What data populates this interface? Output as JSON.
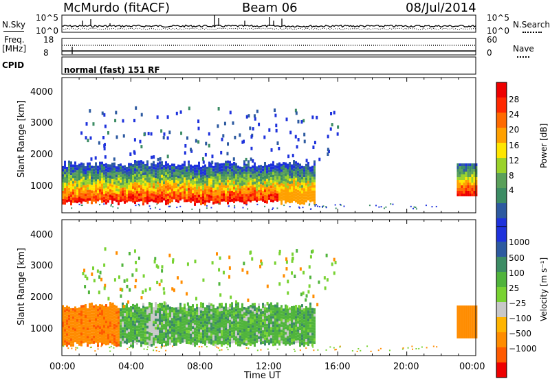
{
  "header": {
    "station": "McMurdo (fitACF)",
    "beam": "Beam 06",
    "date": "08/Jul/2014"
  },
  "top_panels": {
    "nsky_label": "N.Sky",
    "nsearch_label": "N.Search",
    "left_ticks": [
      "10^5",
      "10^0"
    ],
    "right_ticks": [
      "10^5",
      "10^0"
    ],
    "freq_label": "Freq.",
    "freq_unit": "[MHz]",
    "freq_ticks": [
      "18",
      "8"
    ],
    "nave_label": "Nave",
    "nave_ticks": [
      "60",
      "0"
    ],
    "cpid_label": "CPID",
    "cpid_text": "normal (fast) 151 RF"
  },
  "colors": {
    "power_scale": [
      "#1e32dc",
      "#2d5aa0",
      "#3c8c64",
      "#5aa05a",
      "#9ad22a",
      "#ffe600",
      "#ffa000",
      "#ff6a00",
      "#ff2800",
      "#ee0000"
    ],
    "velocity_scale": [
      "#ee0000",
      "#ff5a00",
      "#ff8c00",
      "#ffb400",
      "#c8c8c8",
      "#78d232",
      "#50b43c",
      "#3c8c64",
      "#2d5aa0",
      "#1e32dc"
    ]
  },
  "chart_data": [
    {
      "type": "heatmap",
      "name": "power",
      "xlabel": "",
      "ylabel": "Slant Range [km]",
      "x_ticks": [
        "00:00",
        "04:00",
        "08:00",
        "12:00",
        "16:00",
        "20:00",
        "00:00"
      ],
      "y_ticks": [
        "1000",
        "2000",
        "3000",
        "4000"
      ],
      "xlim": [
        0,
        24
      ],
      "ylim": [
        180,
        4600
      ],
      "colorbar": {
        "label": "Power [dB]",
        "ticks": [
          "28",
          "24",
          "20",
          "16",
          "12",
          "8",
          "4"
        ]
      }
    },
    {
      "type": "heatmap",
      "name": "velocity",
      "xlabel": "Time UT",
      "ylabel": "Slant Range [km]",
      "x_ticks": [
        "00:00",
        "04:00",
        "08:00",
        "12:00",
        "16:00",
        "20:00",
        "00:00"
      ],
      "y_ticks": [
        "1000",
        "2000",
        "3000",
        "4000"
      ],
      "xlim": [
        0,
        24
      ],
      "ylim": [
        180,
        4600
      ],
      "colorbar": {
        "label": "Velocity [m s⁻¹]",
        "ticks": [
          "1000",
          "500",
          "100",
          "25",
          "−25",
          "−100",
          "−500",
          "−1000"
        ]
      }
    }
  ]
}
